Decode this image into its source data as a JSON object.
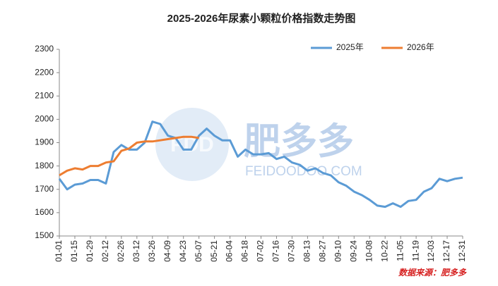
{
  "chart_data": {
    "type": "line",
    "title": "2025-2026年尿素小颗粒价格指数走势图",
    "categories": [
      "01-01",
      null,
      "01-15",
      null,
      "01-29",
      null,
      "02-12",
      null,
      "02-26",
      null,
      "03-12",
      null,
      "03-26",
      null,
      "04-09",
      null,
      "04-23",
      null,
      "05-07",
      null,
      "05-21",
      null,
      "06-04",
      null,
      "06-18",
      null,
      "07-02",
      null,
      "07-16",
      null,
      "07-30",
      null,
      "08-13",
      null,
      "08-27",
      null,
      "09-10",
      null,
      "09-24",
      null,
      "10-08",
      null,
      "10-22",
      null,
      "11-05",
      null,
      "11-19",
      null,
      "12-03",
      null,
      "12-17",
      null,
      "12-31"
    ],
    "series": [
      {
        "name": "2025年",
        "color": "#5b9bd5",
        "values": [
          1745,
          1700,
          1720,
          1725,
          1740,
          1740,
          1725,
          1860,
          1890,
          1870,
          1870,
          1900,
          1990,
          1980,
          1930,
          1920,
          1870,
          1870,
          1930,
          1960,
          1930,
          1910,
          1910,
          1840,
          1870,
          1850,
          1850,
          1855,
          1830,
          1840,
          1815,
          1805,
          1780,
          1790,
          1770,
          1760,
          1730,
          1715,
          1690,
          1675,
          1655,
          1630,
          1625,
          1640,
          1625,
          1650,
          1655,
          1690,
          1705,
          1745,
          1735,
          1745,
          1750
        ]
      },
      {
        "name": "2026年",
        "color": "#ed7d31",
        "values": [
          1760,
          1780,
          1790,
          1785,
          1800,
          1800,
          1815,
          1820,
          1865,
          1875,
          1900,
          1905,
          1905,
          1910,
          1915,
          1920,
          1925,
          1925,
          1920,
          null,
          null,
          null,
          null,
          null,
          null,
          null,
          null,
          null,
          null,
          null,
          null,
          null,
          null,
          null,
          null,
          null,
          null,
          null,
          null,
          null,
          null,
          null,
          null,
          null,
          null,
          null,
          null,
          null,
          null,
          null,
          null,
          null,
          null
        ]
      }
    ],
    "ylim": [
      1500,
      2300
    ],
    "yticks": [
      1500,
      1600,
      1700,
      1800,
      1900,
      2000,
      2100,
      2200,
      2300
    ],
    "grid": false,
    "legend": "top-right",
    "source": "数据来源：肥多多",
    "watermark": {
      "logo": "FDD",
      "brand": "肥多多",
      "site": "FEIDOODOO.COM"
    }
  }
}
